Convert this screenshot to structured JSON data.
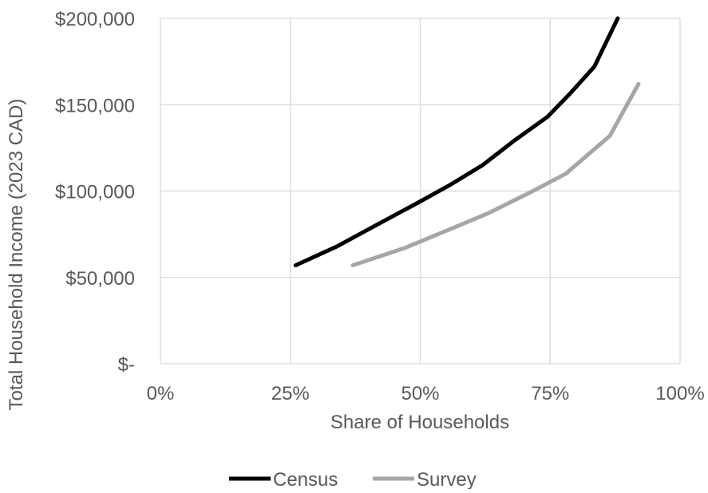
{
  "chart_data": {
    "type": "line",
    "title": "",
    "xlabel": "Share of Households",
    "ylabel": "Total Household Income (2023 CAD)",
    "xlim": [
      0,
      100
    ],
    "ylim": [
      0,
      200000
    ],
    "x_ticks": [
      0,
      25,
      50,
      75,
      100
    ],
    "x_tick_labels": [
      "0%",
      "25%",
      "50%",
      "75%",
      "100%"
    ],
    "y_ticks": [
      0,
      50000,
      100000,
      150000,
      200000
    ],
    "y_tick_labels": [
      "$-",
      "$50,000",
      "$100,000",
      "$150,000",
      "$200,000"
    ],
    "grid": true,
    "legend_position": "bottom",
    "series": [
      {
        "name": "Census",
        "color": "#000000",
        "points": [
          [
            26,
            57000
          ],
          [
            34,
            68000
          ],
          [
            42,
            81000
          ],
          [
            50,
            94000
          ],
          [
            56,
            104000
          ],
          [
            62,
            115000
          ],
          [
            68,
            129000
          ],
          [
            74.5,
            143000
          ],
          [
            79,
            157000
          ],
          [
            83.5,
            172000
          ],
          [
            88,
            200000
          ]
        ]
      },
      {
        "name": "Survey",
        "color": "#a6a6a6",
        "points": [
          [
            37,
            57000
          ],
          [
            47,
            67000
          ],
          [
            55,
            77000
          ],
          [
            63,
            87000
          ],
          [
            71,
            99000
          ],
          [
            78,
            110000
          ],
          [
            86.5,
            132000
          ],
          [
            92,
            162000
          ]
        ]
      }
    ]
  }
}
